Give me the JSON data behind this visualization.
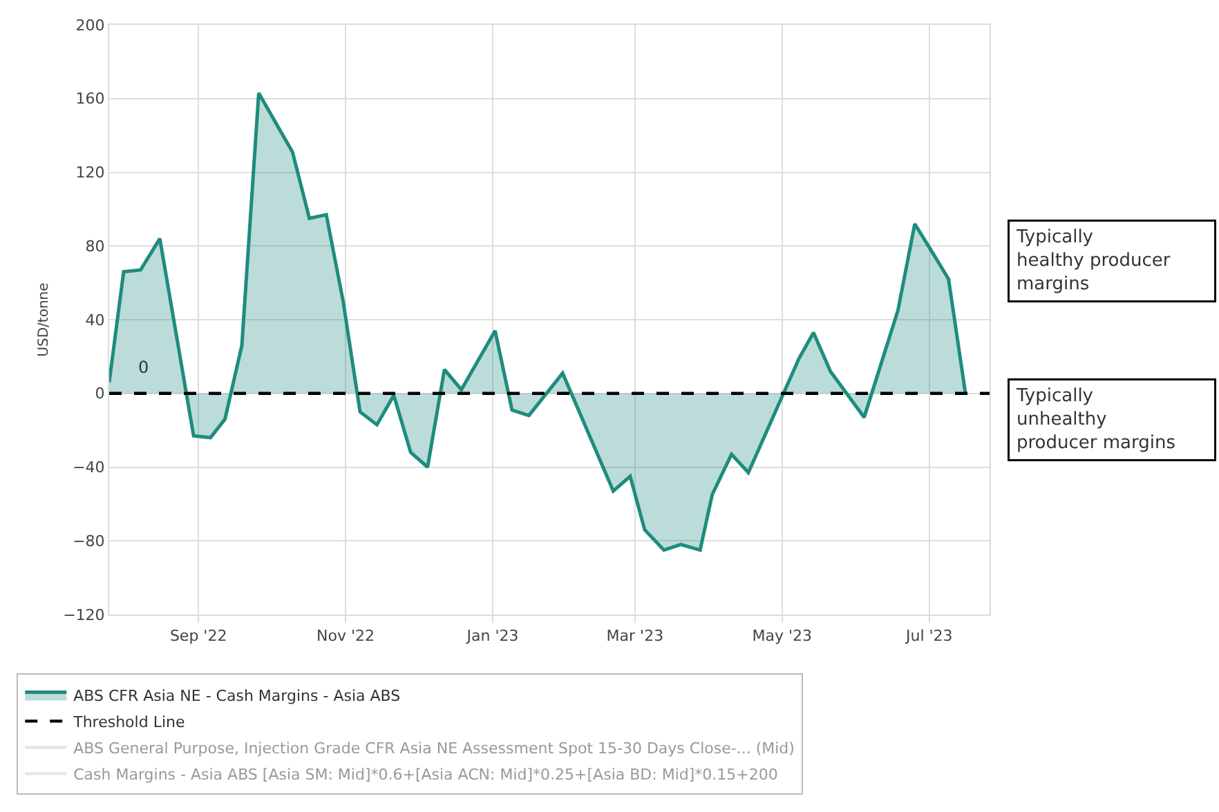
{
  "chart_data": {
    "type": "area",
    "ylabel": "USD/tonne",
    "x": [
      "2022-07-26",
      "2022-08-01",
      "2022-08-08",
      "2022-08-16",
      "2022-08-30",
      "2022-09-06",
      "2022-09-12",
      "2022-09-19",
      "2022-09-26",
      "2022-10-10",
      "2022-10-17",
      "2022-10-24",
      "2022-10-31",
      "2022-11-07",
      "2022-11-14",
      "2022-11-21",
      "2022-11-28",
      "2022-12-05",
      "2022-12-12",
      "2022-12-19",
      "2023-01-02",
      "2023-01-09",
      "2023-01-16",
      "2023-01-30",
      "2023-02-20",
      "2023-02-27",
      "2023-03-05",
      "2023-03-13",
      "2023-03-20",
      "2023-03-28",
      "2023-04-02",
      "2023-04-10",
      "2023-04-17",
      "2023-05-08",
      "2023-05-14",
      "2023-05-21",
      "2023-06-04",
      "2023-06-18",
      "2023-06-25",
      "2023-07-03",
      "2023-07-09",
      "2023-07-16"
    ],
    "series": [
      {
        "name": "ABS CFR Asia NE - Cash Margins - Asia ABS",
        "color": "#1e8c7e",
        "values": [
          6,
          66,
          67,
          84,
          -23,
          -24,
          -14,
          26,
          163,
          131,
          95,
          97,
          50,
          -10,
          -17,
          -1,
          -32,
          -40,
          13,
          2,
          34,
          -9,
          -12,
          11,
          -53,
          -45,
          -74,
          -85,
          -82,
          -85,
          -55,
          -33,
          -43,
          19,
          33,
          12,
          -13,
          45,
          92,
          75,
          62,
          0
        ]
      },
      {
        "name": "Threshold Line",
        "type": "line",
        "color": "#000000",
        "line_style": "dashed",
        "x": [
          "2022-07-26",
          "2023-07-26"
        ],
        "values": [
          0,
          0
        ]
      },
      {
        "name": "ABS General Purpose, Injection Grade CFR Asia NE Assessment Spot 15-30 Days Close-... (Mid)",
        "type": "line",
        "color": "#cccccc",
        "values": [
          null,
          null,
          null,
          null,
          null,
          null,
          null,
          null,
          null,
          null,
          null,
          null,
          null,
          null,
          null,
          null,
          null,
          null,
          null,
          null,
          null,
          null,
          null,
          null,
          null,
          null,
          null,
          null,
          null,
          null,
          null,
          null,
          null,
          null,
          null,
          null,
          null,
          null,
          null,
          null,
          null,
          null
        ]
      },
      {
        "name": "Cash Margins - Asia ABS [Asia SM: Mid]*0.6+[Asia ACN: Mid]*0.25+[Asia BD: Mid]*0.15+200",
        "type": "line",
        "color": "#cccccc",
        "values": [
          null,
          null,
          null,
          null,
          null,
          null,
          null,
          null,
          null,
          null,
          null,
          null,
          null,
          null,
          null,
          null,
          null,
          null,
          null,
          null,
          null,
          null,
          null,
          null,
          null,
          null,
          null,
          null,
          null,
          null,
          null,
          null,
          null,
          null,
          null,
          null,
          null,
          null,
          null,
          null,
          null,
          null
        ]
      }
    ],
    "xlim": [
      "2022-07-26",
      "2023-07-26"
    ],
    "xticks": [
      {
        "value": "2022-09-01",
        "label": "Sep '22"
      },
      {
        "value": "2022-11-01",
        "label": "Nov '22"
      },
      {
        "value": "2023-01-01",
        "label": "Jan '23"
      },
      {
        "value": "2023-03-01",
        "label": "Mar '23"
      },
      {
        "value": "2023-05-01",
        "label": "May '23"
      },
      {
        "value": "2023-07-01",
        "label": "Jul '23"
      }
    ],
    "ylim": [
      -120,
      200
    ],
    "yticks": [
      -120,
      -80,
      -40,
      0,
      40,
      80,
      120,
      160,
      200
    ],
    "annotations": [
      "0",
      "Typically healthy producer margins",
      "Typically unhealthy producer margins"
    ],
    "grid": true,
    "legend": "bottom",
    "marker": "none"
  }
}
